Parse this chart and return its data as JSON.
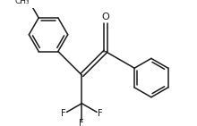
{
  "background": "#ffffff",
  "line_color": "#1a1a1a",
  "line_width": 1.1,
  "font_size": 6.5,
  "fig_width": 2.2,
  "fig_height": 1.41,
  "dpi": 100,
  "xlim": [
    -2.8,
    2.8
  ],
  "ylim": [
    -1.6,
    1.8
  ]
}
